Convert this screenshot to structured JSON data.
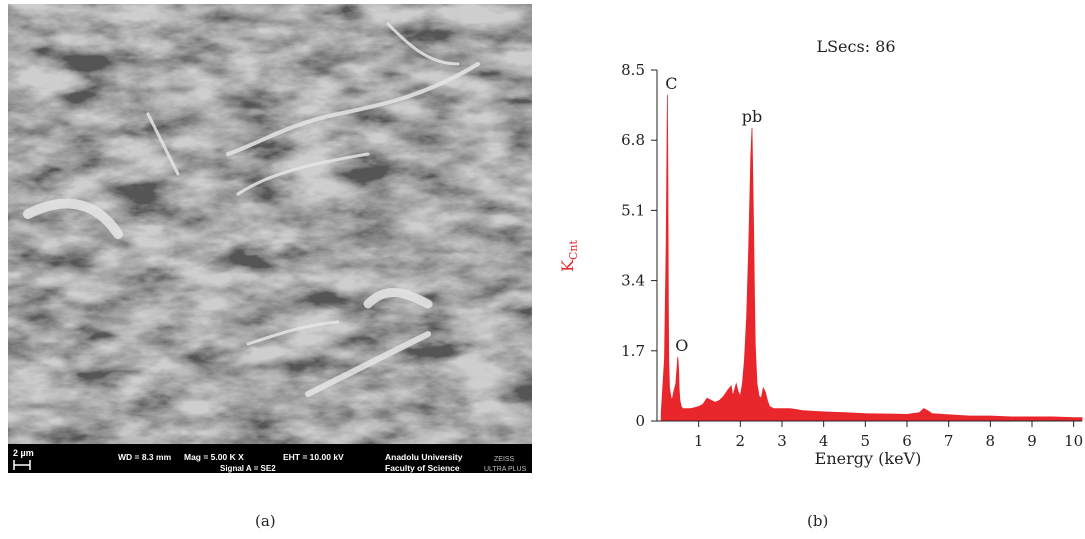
{
  "figure": {
    "caption_a": "(a)",
    "caption_b": "(b)"
  },
  "sem": {
    "scale_label": "2 µm",
    "wd": "WD = 8.3 mm",
    "mag": "Mag = 5.00 K X",
    "eht": "EHT = 10.00 kV",
    "signal": "Signal A = SE2",
    "institution_line1": "Anadolu University",
    "institution_line2": "Faculty of Science",
    "brand_line1": "ZEISS",
    "brand_line2": "ULTRA PLUS"
  },
  "chart_data": {
    "type": "line",
    "title": "LSecs: 86",
    "xlabel": "Energy (keV)",
    "ylabel_main": "K",
    "ylabel_sub": "Cnt",
    "xlim": [
      0,
      10.2
    ],
    "ylim": [
      0,
      8.5
    ],
    "xticks": [
      1,
      2,
      3,
      4,
      5,
      6,
      7,
      8,
      9,
      10
    ],
    "yticks": [
      0,
      1.7,
      3.4,
      5.1,
      6.8,
      8.5
    ],
    "ytick_labels": [
      "0",
      "1.7",
      "3.4",
      "5.1",
      "6.8",
      "8.5"
    ],
    "series_color": "#e8262b",
    "spectrum": {
      "x": [
        0.1,
        0.18,
        0.22,
        0.25,
        0.26,
        0.27,
        0.28,
        0.3,
        0.33,
        0.36,
        0.4,
        0.45,
        0.5,
        0.52,
        0.53,
        0.55,
        0.58,
        0.62,
        0.7,
        0.8,
        0.9,
        1.0,
        1.1,
        1.2,
        1.3,
        1.4,
        1.5,
        1.6,
        1.7,
        1.78,
        1.82,
        1.86,
        1.9,
        1.95,
        2.0,
        2.05,
        2.1,
        2.15,
        2.2,
        2.25,
        2.28,
        2.3,
        2.32,
        2.34,
        2.36,
        2.4,
        2.45,
        2.5,
        2.55,
        2.6,
        2.65,
        2.7,
        2.8,
        3.0,
        3.2,
        3.5,
        4.0,
        4.5,
        5.0,
        5.5,
        6.0,
        6.3,
        6.4,
        6.5,
        6.6,
        7.0,
        7.5,
        8.0,
        8.5,
        9.0,
        9.5,
        10.0,
        10.2
      ],
      "y": [
        0.2,
        1.5,
        4.3,
        7.9,
        6.2,
        3.1,
        1.5,
        0.8,
        0.6,
        0.5,
        0.7,
        0.9,
        1.55,
        1.2,
        0.8,
        0.5,
        0.35,
        0.3,
        0.3,
        0.3,
        0.32,
        0.35,
        0.4,
        0.55,
        0.5,
        0.45,
        0.5,
        0.6,
        0.75,
        0.85,
        0.6,
        0.75,
        0.9,
        0.7,
        0.6,
        0.9,
        1.5,
        2.5,
        4.2,
        6.4,
        7.1,
        5.9,
        4.5,
        3.0,
        1.8,
        0.9,
        0.6,
        0.55,
        0.8,
        0.7,
        0.5,
        0.35,
        0.3,
        0.3,
        0.3,
        0.25,
        0.22,
        0.2,
        0.18,
        0.17,
        0.16,
        0.2,
        0.3,
        0.25,
        0.18,
        0.15,
        0.12,
        0.12,
        0.1,
        0.1,
        0.1,
        0.08,
        0.08
      ]
    },
    "peaks": [
      {
        "label": "C",
        "x": 0.25,
        "y": 7.9
      },
      {
        "label": "pb",
        "x": 2.28,
        "y": 7.1
      },
      {
        "label": "O",
        "x": 0.5,
        "y": 1.55
      }
    ]
  }
}
